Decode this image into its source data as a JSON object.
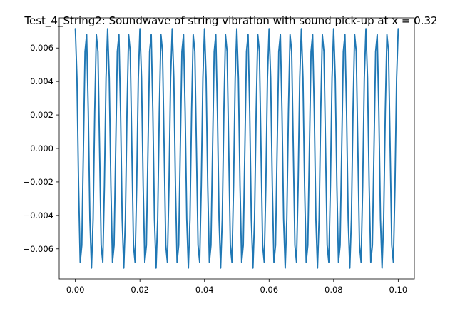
{
  "chart_data": {
    "type": "line",
    "title": "Test_4_String2: Soundwave of string vibration with sound pick-up at x = 0.32",
    "xlabel": "",
    "ylabel": "",
    "xlim": [
      -0.005,
      0.105
    ],
    "ylim": [
      -0.0078,
      0.0078
    ],
    "grid": false,
    "x_ticks": [
      0.0,
      0.02,
      0.04,
      0.06,
      0.08,
      0.1
    ],
    "x_tick_labels": [
      "0.00",
      "0.02",
      "0.04",
      "0.06",
      "0.08",
      "0.10"
    ],
    "y_ticks": [
      -0.006,
      -0.004,
      -0.002,
      0.0,
      0.002,
      0.004,
      0.006
    ],
    "y_tick_labels": [
      "−0.006",
      "−0.004",
      "−0.002",
      "0.000",
      "0.002",
      "0.004",
      "0.006"
    ],
    "color": "#1f77b4",
    "series": [
      {
        "amplitude": 0.00715,
        "x_start": 0.0,
        "x_end": 0.1,
        "cycles": 30,
        "samples": 201,
        "waveform": "cosine"
      }
    ]
  }
}
